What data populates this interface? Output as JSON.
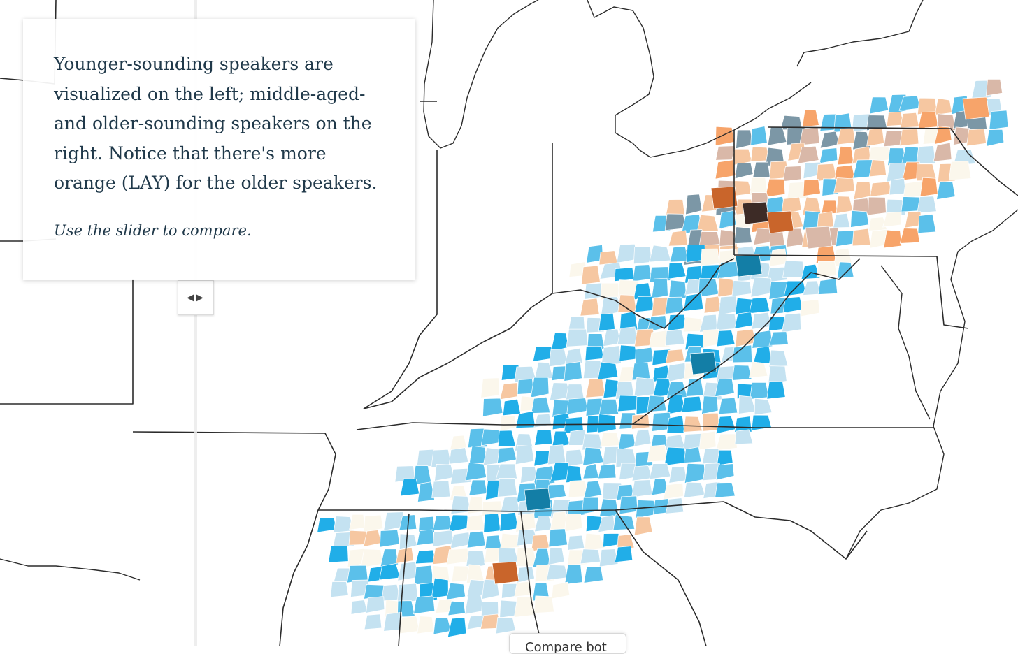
{
  "info": {
    "text": "Younger-sounding speakers are visualized on the left; middle-aged- and older-sounding speakers on the right. Notice that there's more orange (LAY) for the older speakers.",
    "hint": "Use the slider to compare."
  },
  "slider": {
    "icon": "chevrons-left-right-icon",
    "glyph": "◀▶"
  },
  "bottom_button": {
    "label": "Compare bot"
  },
  "legend_colors": {
    "lay_dark": "#3d2b26",
    "lay_strong": "#c9652b",
    "lay_medium": "#f7a46a",
    "lay_light": "#f6c7a1",
    "neutral_light": "#fbf7ec",
    "neutral_tan": "#d9b8a8",
    "neutral_slate": "#7c97a6",
    "lie_light": "#c4e2f1",
    "lie_medium": "#5bc0ea",
    "lie_strong": "#21aee8",
    "lie_dark": "#137ea6"
  }
}
